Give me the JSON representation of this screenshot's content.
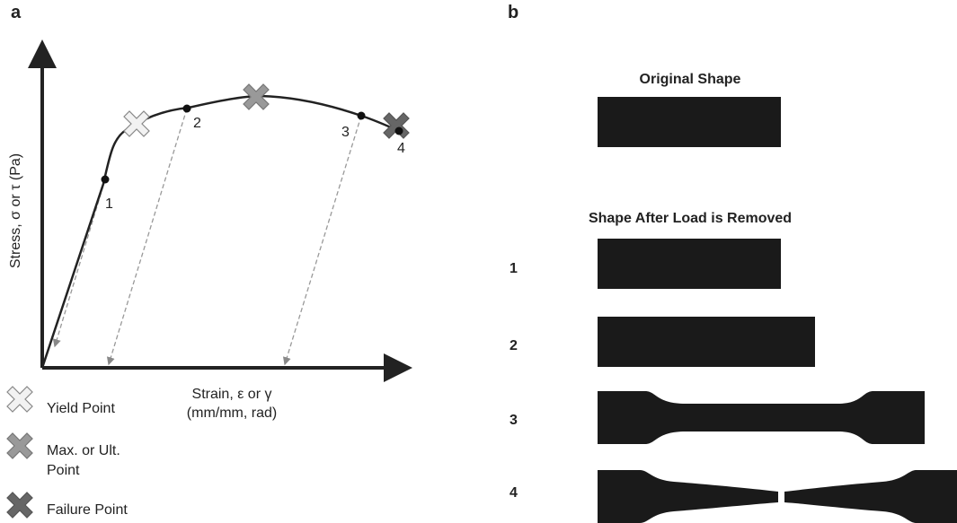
{
  "panel_a": {
    "letter": "a",
    "y_axis_label": "Stress, σ or τ (Pa)",
    "x_axis_label": [
      "Strain, ε or γ",
      "(mm/mm, rad)"
    ],
    "point_labels": [
      "1",
      "2",
      "3",
      "4"
    ],
    "legend": [
      {
        "lines": [
          "Yield Point"
        ]
      },
      {
        "lines": [
          "Max. or Ult.",
          "Point"
        ]
      },
      {
        "lines": [
          "Failure Point"
        ]
      }
    ]
  },
  "panel_b": {
    "letter": "b",
    "original_title": "Original Shape",
    "after_title": "Shape After Load is Removed",
    "row_labels": [
      "1",
      "2",
      "3",
      "4"
    ]
  }
}
